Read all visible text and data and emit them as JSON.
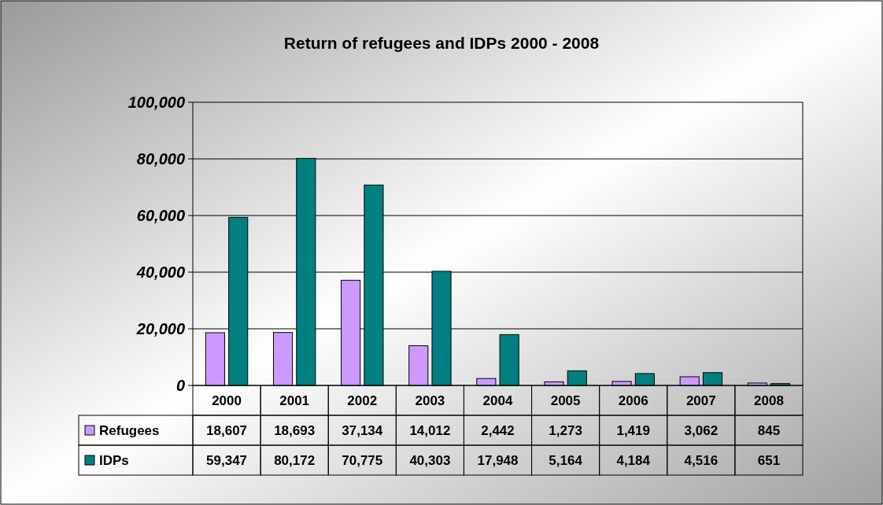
{
  "chart_data": {
    "type": "bar",
    "title": "Return of refugees and IDPs  2000 - 2008",
    "categories": [
      "2000",
      "2001",
      "2002",
      "2003",
      "2004",
      "2005",
      "2006",
      "2007",
      "2008"
    ],
    "series": [
      {
        "name": "Refugees",
        "color": "#cc99ff",
        "values": [
          18607,
          18693,
          37134,
          14012,
          2442,
          1273,
          1419,
          3062,
          845
        ],
        "value_labels": [
          "18,607",
          "18,693",
          "37,134",
          "14,012",
          "2,442",
          "1,273",
          "1,419",
          "3,062",
          "845"
        ]
      },
      {
        "name": "IDPs",
        "color": "#008080",
        "values": [
          59347,
          80172,
          70775,
          40303,
          17948,
          5164,
          4184,
          4516,
          651
        ],
        "value_labels": [
          "59,347",
          "80,172",
          "70,775",
          "40,303",
          "17,948",
          "5,164",
          "4,184",
          "4,516",
          "651"
        ]
      }
    ],
    "ylim": [
      0,
      100000
    ],
    "yticks": [
      0,
      {
        "value": 20000,
        "label": "20,000"
      },
      {
        "value": 40000,
        "label": "40,000"
      },
      {
        "value": 60000,
        "label": "60,000"
      },
      {
        "value": 80000,
        "label": "80,000"
      },
      {
        "value": 100000,
        "label": "100,000"
      }
    ],
    "grid": true,
    "legend": "bottom"
  }
}
